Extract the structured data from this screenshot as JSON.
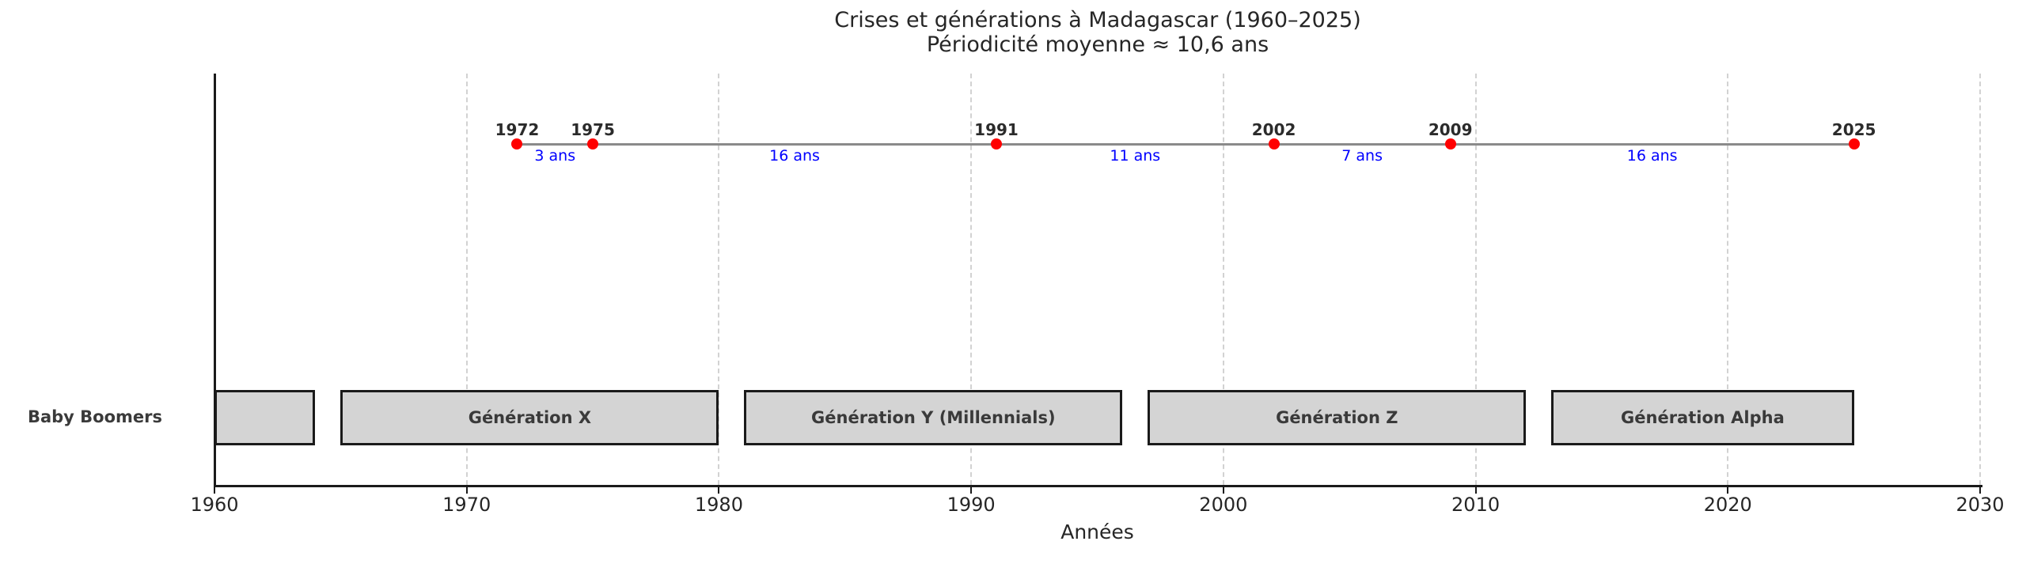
{
  "colors": {
    "crisis_dot": "#ff0000",
    "interval_text": "#0000ff",
    "timeline_line": "#8a8a8a",
    "bar_fill": "#d4d4d4",
    "bar_edge": "#1a1a1a",
    "gridline": "#d2d2d2",
    "axis_text": "#262626",
    "generation_text": "#3a3a3a"
  },
  "chart_data": {
    "type": "timeline",
    "title": "Crises et générations à Madagascar (1960–2025)",
    "subtitle": "Périodicité moyenne ≈ 10,6 ans",
    "xlabel": "Années",
    "xlim": [
      1960,
      2030
    ],
    "x_ticks": [
      1960,
      1970,
      1980,
      1990,
      2000,
      2010,
      2020,
      2030
    ],
    "grid": "vertical-dashed",
    "crisis_years": [
      1972,
      1975,
      1991,
      2002,
      2009,
      2025
    ],
    "intervals": [
      {
        "label": "3 ans",
        "from": 1972,
        "to": 1975
      },
      {
        "label": "16 ans",
        "from": 1975,
        "to": 1991
      },
      {
        "label": "11 ans",
        "from": 1991,
        "to": 2002
      },
      {
        "label": "7 ans",
        "from": 2002,
        "to": 2009
      },
      {
        "label": "16 ans",
        "from": 2009,
        "to": 2025
      }
    ],
    "generations": [
      {
        "label": "Baby Boomers",
        "start": 1960,
        "end": 1964,
        "label_placement": "outside-left"
      },
      {
        "label": "Génération X",
        "start": 1965,
        "end": 1980,
        "label_placement": "inside"
      },
      {
        "label": "Génération Y (Millennials)",
        "start": 1981,
        "end": 1996,
        "label_placement": "inside"
      },
      {
        "label": "Génération Z",
        "start": 1997,
        "end": 2012,
        "label_placement": "inside"
      },
      {
        "label": "Génération Alpha",
        "start": 2013,
        "end": 2025,
        "label_placement": "inside"
      }
    ]
  }
}
